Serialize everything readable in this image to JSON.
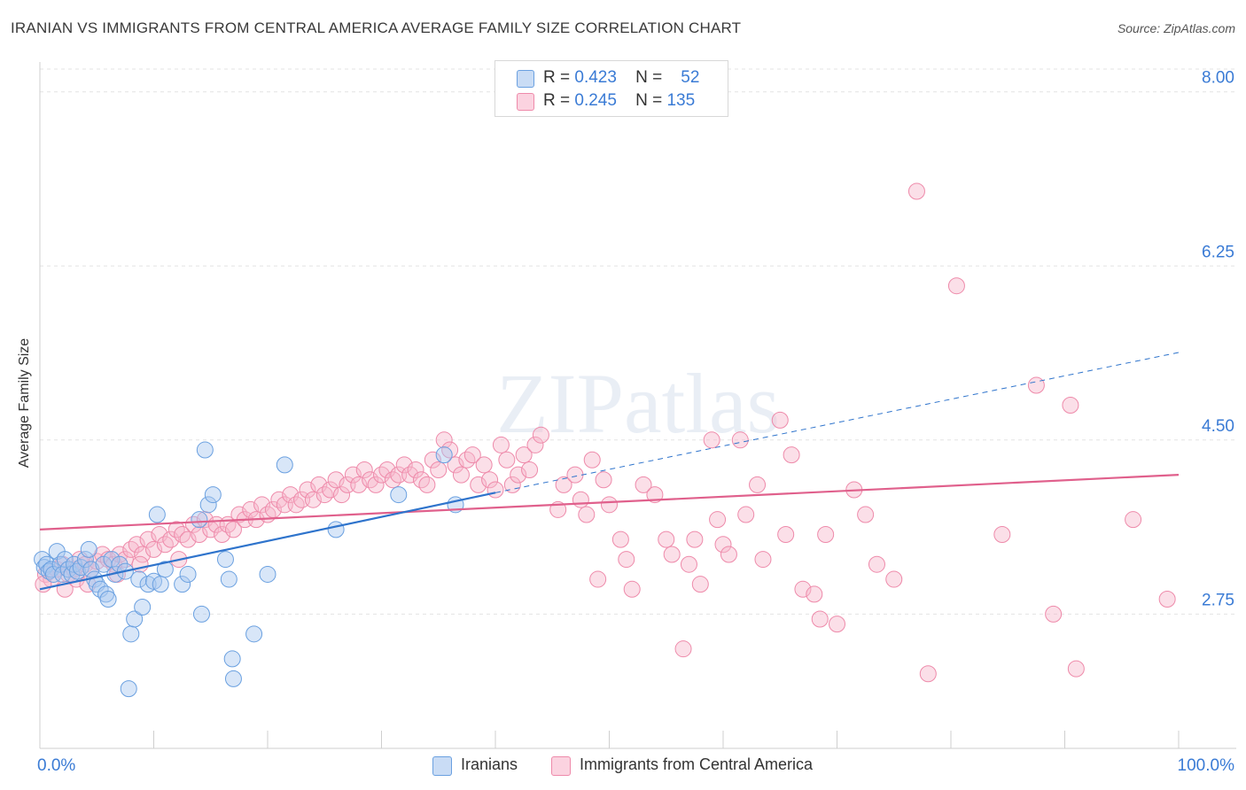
{
  "header": {
    "title": "IRANIAN VS IMMIGRANTS FROM CENTRAL AMERICA AVERAGE FAMILY SIZE CORRELATION CHART",
    "source": "Source: ZipAtlas.com"
  },
  "watermark": "ZIPatlas",
  "stats": [
    {
      "r_label": "R =",
      "r_value": "0.423",
      "n_label": "N =",
      "n_value": "52",
      "color": "#a9c8f0"
    },
    {
      "r_label": "R =",
      "r_value": "0.245",
      "n_label": "N =",
      "n_value": "135",
      "color": "#f7b8cc"
    }
  ],
  "legend": [
    {
      "label": "Iranians",
      "color": "#a9c8f0"
    },
    {
      "label": "Immigrants from Central America",
      "color": "#f7b8cc"
    }
  ],
  "chart_data": {
    "type": "scatter",
    "xlabel": "",
    "ylabel": "Average Family Size",
    "x_tick_labels": [
      "0.0%",
      "100.0%"
    ],
    "y_tick_labels": [
      "2.75",
      "4.50",
      "6.25",
      "8.00"
    ],
    "xlim": [
      0,
      100
    ],
    "ylim": [
      1.4,
      8.3
    ],
    "y_ticks": [
      2.75,
      4.5,
      6.25,
      8.0
    ],
    "colors": {
      "iranians": "#6aa0e0",
      "central_america": "#ee8aaa",
      "iranians_line": "#2f74cc",
      "central_america_line": "#e0608c"
    },
    "series": [
      {
        "name": "Iranians",
        "trend": {
          "x0": 0,
          "y0": 3.0,
          "x1": 40,
          "y1": 3.97,
          "dashed_to_x": 100,
          "dashed_to_y": 5.38
        },
        "points": [
          [
            0.2,
            3.3
          ],
          [
            0.4,
            3.22
          ],
          [
            0.6,
            3.25
          ],
          [
            0.8,
            3.18
          ],
          [
            1.0,
            3.2
          ],
          [
            1.2,
            3.15
          ],
          [
            1.5,
            3.38
          ],
          [
            1.8,
            3.25
          ],
          [
            2.0,
            3.15
          ],
          [
            2.2,
            3.3
          ],
          [
            2.5,
            3.2
          ],
          [
            2.8,
            3.15
          ],
          [
            3.0,
            3.25
          ],
          [
            3.3,
            3.18
          ],
          [
            3.6,
            3.22
          ],
          [
            4.0,
            3.3
          ],
          [
            4.3,
            3.4
          ],
          [
            4.5,
            3.2
          ],
          [
            4.8,
            3.1
          ],
          [
            5.0,
            3.05
          ],
          [
            5.3,
            3.0
          ],
          [
            5.6,
            3.25
          ],
          [
            5.8,
            2.95
          ],
          [
            6.0,
            2.9
          ],
          [
            6.3,
            3.3
          ],
          [
            6.6,
            3.15
          ],
          [
            7.0,
            3.25
          ],
          [
            7.5,
            3.18
          ],
          [
            8.0,
            2.55
          ],
          [
            8.3,
            2.7
          ],
          [
            8.7,
            3.1
          ],
          [
            9.0,
            2.82
          ],
          [
            9.5,
            3.05
          ],
          [
            10.0,
            3.08
          ],
          [
            10.3,
            3.75
          ],
          [
            10.6,
            3.05
          ],
          [
            11.0,
            3.2
          ],
          [
            12.5,
            3.05
          ],
          [
            13.0,
            3.15
          ],
          [
            14.0,
            3.7
          ],
          [
            14.2,
            2.75
          ],
          [
            14.5,
            4.4
          ],
          [
            14.8,
            3.85
          ],
          [
            15.2,
            3.95
          ],
          [
            16.3,
            3.3
          ],
          [
            16.6,
            3.1
          ],
          [
            16.9,
            2.3
          ],
          [
            18.8,
            2.55
          ],
          [
            20.0,
            3.15
          ],
          [
            21.5,
            4.25
          ],
          [
            26.0,
            3.6
          ],
          [
            31.5,
            3.95
          ],
          [
            35.5,
            4.35
          ],
          [
            36.5,
            3.85
          ],
          [
            7.8,
            2.0
          ],
          [
            17.0,
            2.1
          ]
        ]
      },
      {
        "name": "Immigrants from Central America",
        "trend": {
          "x0": 0,
          "y0": 3.6,
          "x1": 100,
          "y1": 4.15
        },
        "points": [
          [
            0.5,
            3.15
          ],
          [
            1.0,
            3.1
          ],
          [
            1.5,
            3.2
          ],
          [
            2.0,
            3.25
          ],
          [
            2.5,
            3.15
          ],
          [
            3.0,
            3.2
          ],
          [
            3.5,
            3.3
          ],
          [
            4.0,
            3.25
          ],
          [
            4.5,
            3.2
          ],
          [
            5.0,
            3.28
          ],
          [
            5.5,
            3.35
          ],
          [
            6.0,
            3.3
          ],
          [
            6.5,
            3.25
          ],
          [
            7.0,
            3.35
          ],
          [
            7.5,
            3.3
          ],
          [
            8.0,
            3.4
          ],
          [
            8.5,
            3.45
          ],
          [
            9.0,
            3.35
          ],
          [
            9.5,
            3.5
          ],
          [
            10.0,
            3.4
          ],
          [
            10.5,
            3.55
          ],
          [
            11.0,
            3.45
          ],
          [
            11.5,
            3.5
          ],
          [
            12.0,
            3.6
          ],
          [
            12.5,
            3.55
          ],
          [
            13.0,
            3.5
          ],
          [
            13.5,
            3.65
          ],
          [
            14.0,
            3.55
          ],
          [
            14.5,
            3.7
          ],
          [
            15.0,
            3.6
          ],
          [
            15.5,
            3.65
          ],
          [
            16.0,
            3.55
          ],
          [
            16.5,
            3.65
          ],
          [
            17.0,
            3.6
          ],
          [
            17.5,
            3.75
          ],
          [
            18.0,
            3.7
          ],
          [
            18.5,
            3.8
          ],
          [
            19.0,
            3.7
          ],
          [
            19.5,
            3.85
          ],
          [
            20.0,
            3.75
          ],
          [
            20.5,
            3.8
          ],
          [
            21.0,
            3.9
          ],
          [
            21.5,
            3.85
          ],
          [
            22.0,
            3.95
          ],
          [
            22.5,
            3.85
          ],
          [
            23.0,
            3.9
          ],
          [
            23.5,
            4.0
          ],
          [
            24.0,
            3.9
          ],
          [
            24.5,
            4.05
          ],
          [
            25.0,
            3.95
          ],
          [
            25.5,
            4.0
          ],
          [
            26.0,
            4.1
          ],
          [
            26.5,
            3.95
          ],
          [
            27.0,
            4.05
          ],
          [
            27.5,
            4.15
          ],
          [
            28.0,
            4.05
          ],
          [
            28.5,
            4.2
          ],
          [
            29.0,
            4.1
          ],
          [
            29.5,
            4.05
          ],
          [
            30.0,
            4.15
          ],
          [
            30.5,
            4.2
          ],
          [
            31.0,
            4.1
          ],
          [
            31.5,
            4.15
          ],
          [
            32.0,
            4.25
          ],
          [
            32.5,
            4.15
          ],
          [
            33.0,
            4.2
          ],
          [
            33.5,
            4.1
          ],
          [
            34.0,
            4.05
          ],
          [
            34.5,
            4.3
          ],
          [
            35.0,
            4.2
          ],
          [
            35.5,
            4.5
          ],
          [
            36.0,
            4.4
          ],
          [
            36.5,
            4.25
          ],
          [
            37.0,
            4.15
          ],
          [
            37.5,
            4.3
          ],
          [
            38.0,
            4.35
          ],
          [
            38.5,
            4.05
          ],
          [
            39.0,
            4.25
          ],
          [
            39.5,
            4.1
          ],
          [
            40.0,
            4.0
          ],
          [
            40.5,
            4.45
          ],
          [
            41.0,
            4.3
          ],
          [
            41.5,
            4.05
          ],
          [
            42.0,
            4.15
          ],
          [
            42.5,
            4.35
          ],
          [
            43.0,
            4.2
          ],
          [
            43.5,
            4.45
          ],
          [
            44.0,
            4.55
          ],
          [
            45.5,
            3.8
          ],
          [
            46.0,
            4.05
          ],
          [
            47.0,
            4.15
          ],
          [
            47.5,
            3.9
          ],
          [
            48.0,
            3.75
          ],
          [
            48.5,
            4.3
          ],
          [
            49.0,
            3.1
          ],
          [
            49.5,
            4.1
          ],
          [
            50.0,
            3.85
          ],
          [
            51.0,
            3.5
          ],
          [
            51.5,
            3.3
          ],
          [
            52.0,
            3.0
          ],
          [
            53.0,
            4.05
          ],
          [
            54.0,
            3.95
          ],
          [
            55.0,
            3.5
          ],
          [
            55.5,
            3.35
          ],
          [
            56.5,
            2.4
          ],
          [
            57.0,
            3.25
          ],
          [
            57.5,
            3.5
          ],
          [
            58.0,
            3.05
          ],
          [
            59.0,
            4.5
          ],
          [
            59.5,
            3.7
          ],
          [
            60.0,
            3.45
          ],
          [
            60.5,
            3.35
          ],
          [
            61.5,
            4.5
          ],
          [
            62.0,
            3.75
          ],
          [
            63.0,
            4.05
          ],
          [
            63.5,
            3.3
          ],
          [
            65.0,
            4.7
          ],
          [
            65.5,
            3.55
          ],
          [
            66.0,
            4.35
          ],
          [
            67.0,
            3.0
          ],
          [
            68.0,
            2.95
          ],
          [
            68.5,
            2.7
          ],
          [
            69.0,
            3.55
          ],
          [
            70.0,
            2.65
          ],
          [
            71.5,
            4.0
          ],
          [
            72.5,
            3.75
          ],
          [
            77.0,
            7.0
          ],
          [
            78.0,
            2.15
          ],
          [
            80.5,
            6.05
          ],
          [
            89.0,
            2.75
          ],
          [
            90.5,
            4.85
          ],
          [
            91.0,
            2.2
          ],
          [
            96.0,
            3.7
          ],
          [
            99.0,
            2.9
          ],
          [
            87.5,
            5.05
          ],
          [
            84.5,
            3.55
          ],
          [
            75.0,
            3.1
          ],
          [
            73.5,
            3.25
          ],
          [
            2.2,
            3.0
          ],
          [
            0.3,
            3.05
          ],
          [
            3.2,
            3.1
          ],
          [
            4.2,
            3.05
          ],
          [
            6.8,
            3.15
          ],
          [
            8.8,
            3.25
          ],
          [
            12.2,
            3.3
          ]
        ]
      }
    ]
  }
}
